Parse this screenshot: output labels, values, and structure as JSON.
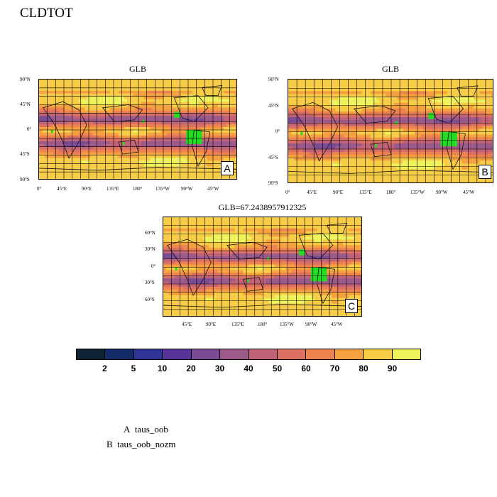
{
  "main_title": "CLDTOT",
  "panels": [
    {
      "title": "GLB",
      "letter": "A",
      "lat_ticks": [
        "90°N",
        "45°N",
        "0°",
        "45°S",
        "90°S"
      ],
      "lon_ticks": [
        "0°",
        "45°E",
        "90°E",
        "135°E",
        "180°",
        "135°W",
        "90°W",
        "45°W"
      ]
    },
    {
      "title": "GLB",
      "letter": "B",
      "lat_ticks": [
        "90°N",
        "45°N",
        "0°",
        "45°S",
        "90°S"
      ],
      "lon_ticks": [
        "0°",
        "45°E",
        "90°E",
        "135°E",
        "180°",
        "135°W",
        "90°W",
        "45°W"
      ]
    },
    {
      "title": "GLB=67.2438957912325",
      "letter": "C",
      "lat_ticks": [
        "60°N",
        "30°N",
        "0°",
        "30°S",
        "60°S"
      ],
      "lon_ticks": [
        "45°E",
        "90°E",
        "135°E",
        "180°",
        "135°W",
        "90°W",
        "45°W"
      ]
    }
  ],
  "colorbar": {
    "colors": [
      "#0d2233",
      "#132b66",
      "#2e3497",
      "#56349a",
      "#7b4c94",
      "#9c5a8b",
      "#c06378",
      "#dc7063",
      "#ee8350",
      "#f5a140",
      "#f7cd48",
      "#eef25c"
    ],
    "labels": [
      "2",
      "5",
      "10",
      "20",
      "30",
      "40",
      "50",
      "60",
      "70",
      "80",
      "90"
    ]
  },
  "legend": [
    {
      "letter": "A",
      "name": "taus_oob"
    },
    {
      "letter": "B",
      "name": "taus_oob_nozm"
    }
  ],
  "chart_data": {
    "type": "heatmap",
    "variable": "CLDTOT",
    "panels": [
      {
        "label": "A",
        "title": "GLB",
        "case": "taus_oob"
      },
      {
        "label": "B",
        "title": "GLB",
        "case": "taus_oob_nozm"
      },
      {
        "label": "C",
        "title": "GLB=67.2438957912325",
        "global_mean": 67.2438957912325
      }
    ],
    "contour_levels": [
      2,
      5,
      10,
      20,
      30,
      40,
      50,
      60,
      70,
      80,
      90
    ],
    "grid": true,
    "colorbar_placement": "bottom"
  }
}
